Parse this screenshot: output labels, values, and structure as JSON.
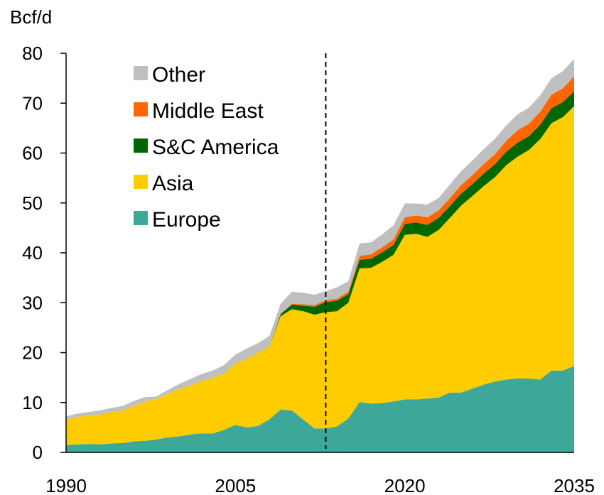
{
  "chart_data": {
    "type": "area",
    "stacked": true,
    "ylabel": "Bcf/d",
    "ylim": [
      0,
      80
    ],
    "yticks": [
      0,
      10,
      20,
      30,
      40,
      50,
      60,
      70,
      80
    ],
    "xlim": [
      1990,
      2035
    ],
    "xticks": [
      1990,
      2005,
      2020,
      2035
    ],
    "forecast_divider_x": 2013,
    "grid": false,
    "legend_position": "top-left",
    "x": [
      1990,
      1991,
      1992,
      1993,
      1994,
      1995,
      1996,
      1997,
      1998,
      1999,
      2000,
      2001,
      2002,
      2003,
      2004,
      2005,
      2006,
      2007,
      2008,
      2009,
      2010,
      2011,
      2012,
      2013,
      2014,
      2015,
      2016,
      2017,
      2018,
      2019,
      2020,
      2021,
      2022,
      2023,
      2024,
      2025,
      2026,
      2027,
      2028,
      2029,
      2030,
      2031,
      2032,
      2033,
      2034,
      2035
    ],
    "series": [
      {
        "name": "Europe",
        "color": "#3DA89A",
        "values": [
          1.5,
          1.6,
          1.7,
          1.6,
          1.8,
          1.9,
          2.2,
          2.3,
          2.6,
          3.0,
          3.2,
          3.6,
          3.8,
          3.8,
          4.5,
          5.5,
          5.0,
          5.3,
          6.6,
          8.6,
          8.4,
          6.6,
          4.8,
          4.8,
          5.2,
          6.8,
          10.1,
          9.8,
          9.9,
          10.2,
          10.6,
          10.6,
          10.8,
          11.0,
          12.0,
          12.0,
          12.8,
          13.6,
          14.2,
          14.6,
          14.8,
          14.8,
          14.6,
          16.4,
          16.4,
          17.3
        ]
      },
      {
        "name": "Asia",
        "color": "#FFCC00",
        "values": [
          5.1,
          5.5,
          5.7,
          6.0,
          6.3,
          6.5,
          7.1,
          7.9,
          8.1,
          8.7,
          9.5,
          9.8,
          10.5,
          11.1,
          11.3,
          12.3,
          13.7,
          14.7,
          14.6,
          18.7,
          20.3,
          21.7,
          22.8,
          23.3,
          23.1,
          23.2,
          26.8,
          27.2,
          28.3,
          29.4,
          33.0,
          33.2,
          32.4,
          33.6,
          35.0,
          37.5,
          38.6,
          39.8,
          41.0,
          43.0,
          44.5,
          45.8,
          48.2,
          49.6,
          50.8,
          52.1
        ]
      },
      {
        "name": "S&C America",
        "color": "#006600",
        "values": [
          0,
          0,
          0,
          0,
          0,
          0,
          0,
          0,
          0,
          0,
          0,
          0,
          0,
          0,
          0,
          0,
          0,
          0,
          0,
          0.4,
          0.9,
          1.1,
          1.6,
          2.0,
          2.1,
          1.7,
          1.7,
          1.8,
          1.9,
          2.0,
          2.2,
          2.3,
          2.4,
          2.4,
          2.4,
          2.4,
          2.4,
          2.5,
          2.6,
          2.7,
          2.8,
          2.8,
          2.9,
          3.0,
          3.0,
          3.0
        ]
      },
      {
        "name": "Middle East",
        "color": "#FF6600",
        "values": [
          0,
          0,
          0,
          0,
          0,
          0,
          0,
          0,
          0,
          0,
          0,
          0,
          0,
          0,
          0,
          0,
          0,
          0,
          0,
          0.1,
          0.2,
          0.3,
          0.3,
          0.4,
          0.4,
          0.5,
          0.8,
          0.9,
          1.0,
          1.1,
          1.3,
          1.4,
          1.5,
          1.5,
          1.6,
          1.7,
          1.8,
          1.9,
          2.0,
          2.2,
          2.5,
          2.5,
          2.6,
          2.7,
          2.8,
          3.0
        ]
      },
      {
        "name": "Other",
        "color": "#BFBFBF",
        "values": [
          0.6,
          0.7,
          0.7,
          0.8,
          0.8,
          0.9,
          1.0,
          0.9,
          0.5,
          0.8,
          1.0,
          1.3,
          1.4,
          1.5,
          1.7,
          1.8,
          2.1,
          1.9,
          2.1,
          2.0,
          2.4,
          2.3,
          2.1,
          1.8,
          2.3,
          2.1,
          2.5,
          2.4,
          2.6,
          2.8,
          2.8,
          2.4,
          2.6,
          2.5,
          2.7,
          2.8,
          2.9,
          3.0,
          3.1,
          3.1,
          3.2,
          3.2,
          3.3,
          3.3,
          3.4,
          3.5
        ]
      }
    ]
  }
}
